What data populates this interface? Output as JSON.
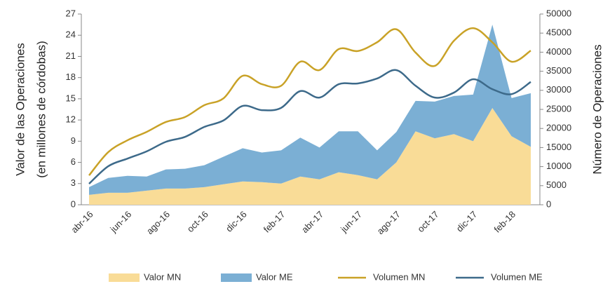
{
  "chart_data": {
    "type": "area-line",
    "y_label": [
      "Valor de las Operaciones",
      "(en millones de córdobas)"
    ],
    "y2_label": "Número de Operaciones",
    "categories": [
      "abr-16",
      null,
      "jun-16",
      null,
      "ago-16",
      null,
      "oct-16",
      null,
      "dic-16",
      null,
      "feb-17",
      null,
      "abr-17",
      null,
      "jun-17",
      null,
      "ago-17",
      null,
      "oct-17",
      null,
      "dic-17",
      null,
      "feb-18",
      null
    ],
    "ylim": [
      0,
      27
    ],
    "yticks": [
      0,
      3,
      6,
      9,
      12,
      15,
      18,
      21,
      24,
      27
    ],
    "y2lim": [
      0,
      50000
    ],
    "y2ticks": [
      0,
      5000,
      10000,
      15000,
      20000,
      25000,
      30000,
      35000,
      40000,
      45000,
      50000
    ],
    "series": [
      {
        "name": "Valor MN",
        "kind": "area",
        "color": "#f9dc97",
        "values": [
          1.4,
          1.7,
          1.7,
          2.0,
          2.3,
          2.3,
          2.5,
          2.9,
          3.3,
          3.2,
          3.0,
          4.0,
          3.6,
          4.6,
          4.2,
          3.6,
          6.0,
          10.4,
          9.4,
          10.0,
          9.0,
          13.7,
          9.7,
          8.2
        ]
      },
      {
        "name": "Valor ME",
        "kind": "area",
        "color": "#7bafd4",
        "values": [
          1.1,
          2.1,
          2.4,
          2.0,
          2.7,
          2.8,
          3.1,
          3.9,
          4.7,
          4.2,
          4.7,
          5.5,
          4.5,
          5.8,
          6.2,
          4.1,
          4.3,
          4.3,
          5.2,
          5.4,
          6.6,
          11.8,
          5.4,
          7.6
        ]
      },
      {
        "name": "Volumen MN",
        "kind": "line",
        "axis": "y2",
        "color": "#c9a227",
        "values": [
          7700,
          13800,
          16900,
          19100,
          21700,
          23000,
          26100,
          27900,
          33800,
          31600,
          31200,
          37500,
          35300,
          40800,
          40300,
          42600,
          46000,
          39900,
          36400,
          43000,
          46300,
          42600,
          37500,
          40400
        ]
      },
      {
        "name": "Volumen ME",
        "kind": "line",
        "axis": "y2",
        "color": "#3d6a8a",
        "values": [
          5500,
          10100,
          12100,
          14000,
          16500,
          17800,
          20400,
          22100,
          25900,
          24800,
          25400,
          29800,
          28100,
          31600,
          31800,
          33100,
          35300,
          31200,
          28100,
          29400,
          32900,
          30300,
          29000,
          32200
        ]
      }
    ]
  }
}
